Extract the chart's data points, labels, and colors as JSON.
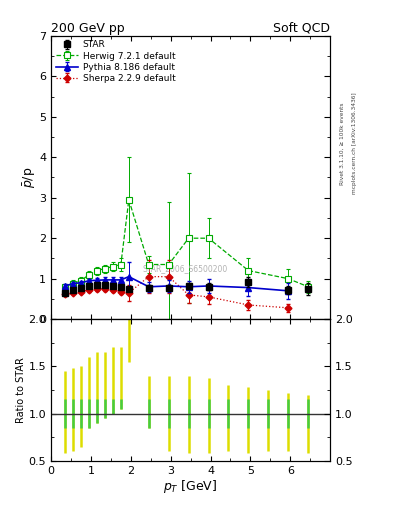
{
  "title_left": "200 GeV pp",
  "title_right": "Soft QCD",
  "ylabel_main": "$\\bar{p}$/p",
  "ylabel_ratio": "Ratio to STAR",
  "xlabel": "$p_T$ [GeV]",
  "right_label_top": "Rivet 3.1.10, ≥ 100k events",
  "right_label_bot": "mcplots.cern.ch [arXiv:1306.3436]",
  "watermark": "STAR_2006_S6500200",
  "ylim_main": [
    0,
    7
  ],
  "ylim_ratio": [
    0.5,
    2.0
  ],
  "xlim": [
    0,
    7.0
  ],
  "star_x": [
    0.35,
    0.55,
    0.75,
    0.95,
    1.15,
    1.35,
    1.55,
    1.75,
    1.95,
    2.45,
    2.95,
    3.45,
    3.95,
    4.95,
    5.95,
    6.45
  ],
  "star_y": [
    0.65,
    0.72,
    0.78,
    0.82,
    0.84,
    0.84,
    0.81,
    0.79,
    0.75,
    0.78,
    0.78,
    0.82,
    0.8,
    0.92,
    0.72,
    0.75
  ],
  "star_yerr": [
    0.05,
    0.04,
    0.04,
    0.04,
    0.04,
    0.04,
    0.04,
    0.04,
    0.05,
    0.06,
    0.07,
    0.08,
    0.09,
    0.12,
    0.1,
    0.15
  ],
  "herwig_x": [
    0.35,
    0.55,
    0.75,
    0.95,
    1.15,
    1.35,
    1.55,
    1.75,
    1.95,
    2.45,
    2.95,
    3.45,
    3.95,
    4.95,
    5.95,
    6.45
  ],
  "herwig_y": [
    0.8,
    0.88,
    0.95,
    1.1,
    1.2,
    1.25,
    1.3,
    1.35,
    2.95,
    1.35,
    1.35,
    2.0,
    2.0,
    1.2,
    1.0,
    0.8
  ],
  "herwig_yerr": [
    0.08,
    0.08,
    0.08,
    0.1,
    0.1,
    0.1,
    0.12,
    0.15,
    1.05,
    0.2,
    1.55,
    1.6,
    0.5,
    0.3,
    0.25,
    0.15
  ],
  "pythia_x": [
    0.35,
    0.55,
    0.75,
    0.95,
    1.15,
    1.35,
    1.55,
    1.75,
    1.95,
    2.45,
    2.95,
    3.45,
    3.95,
    4.95,
    5.95
  ],
  "pythia_y": [
    0.82,
    0.88,
    0.9,
    0.95,
    0.96,
    0.97,
    0.97,
    0.97,
    1.05,
    0.8,
    0.82,
    0.8,
    0.82,
    0.78,
    0.7
  ],
  "pythia_yerr": [
    0.05,
    0.05,
    0.05,
    0.05,
    0.05,
    0.06,
    0.07,
    0.08,
    0.35,
    0.12,
    0.15,
    0.15,
    0.18,
    0.2,
    0.2
  ],
  "sherpa_x": [
    0.35,
    0.55,
    0.75,
    0.95,
    1.15,
    1.35,
    1.55,
    1.75,
    1.95,
    2.45,
    2.95,
    3.45,
    3.95,
    4.95,
    5.95
  ],
  "sherpa_y": [
    0.62,
    0.65,
    0.68,
    0.72,
    0.75,
    0.75,
    0.72,
    0.68,
    0.65,
    1.05,
    1.05,
    0.6,
    0.55,
    0.35,
    0.28
  ],
  "sherpa_yerr": [
    0.04,
    0.04,
    0.04,
    0.05,
    0.05,
    0.05,
    0.06,
    0.06,
    0.2,
    0.4,
    0.4,
    0.2,
    0.18,
    0.12,
    0.1
  ],
  "herwig_color": "#00aa00",
  "pythia_color": "#0000cc",
  "sherpa_color": "#cc0000",
  "star_color": "#000000",
  "ratio_x": [
    0.35,
    0.55,
    0.75,
    0.95,
    1.15,
    1.35,
    1.55,
    1.75,
    1.95,
    2.45,
    2.95,
    3.45,
    3.95,
    4.45,
    4.95,
    5.45,
    5.95,
    6.45
  ],
  "ratio_ylo": [
    0.58,
    0.6,
    0.65,
    0.85,
    0.9,
    0.95,
    1.0,
    1.05,
    1.55,
    0.85,
    0.6,
    0.58,
    0.58,
    0.6,
    0.58,
    0.6,
    0.6,
    0.58
  ],
  "ratio_yhi": [
    1.45,
    1.48,
    1.5,
    1.6,
    1.65,
    1.65,
    1.7,
    1.7,
    2.0,
    1.4,
    1.4,
    1.4,
    1.38,
    1.3,
    1.28,
    1.25,
    1.22,
    1.2
  ]
}
